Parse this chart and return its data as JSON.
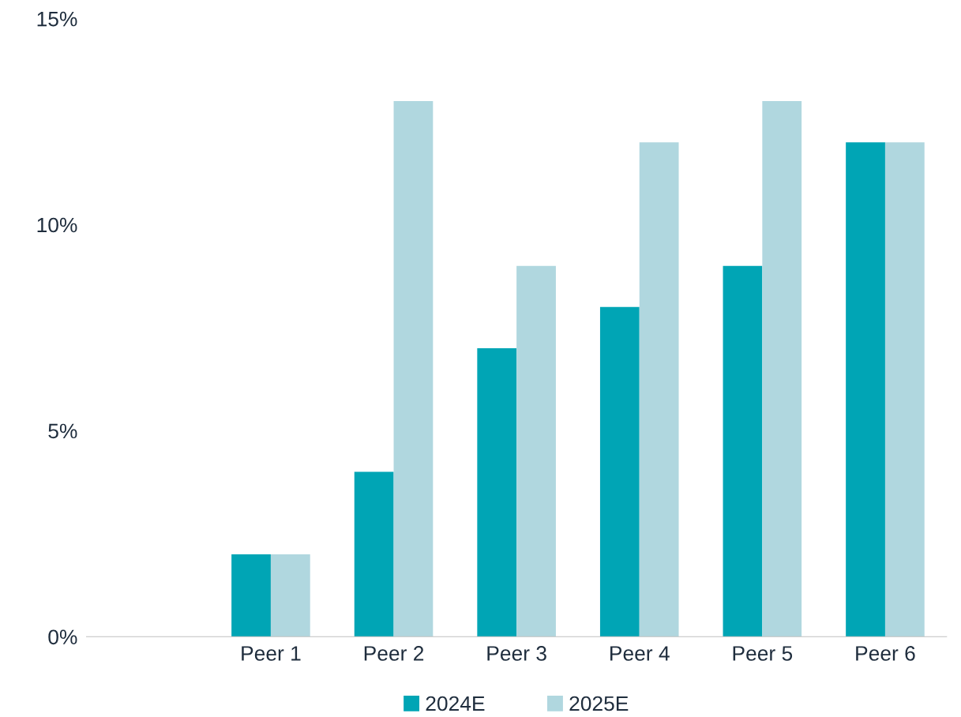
{
  "chart_data": {
    "type": "bar",
    "categories": [
      null,
      "Peer 1",
      "Peer 2",
      "Peer 3",
      "Peer 4",
      "Peer 5",
      "Peer 6"
    ],
    "series": [
      {
        "name": "2024E",
        "color": "#00a5b5",
        "values": [
          null,
          2,
          4,
          7,
          8,
          9,
          12
        ]
      },
      {
        "name": "2025E",
        "color": "#b0d7df",
        "values": [
          null,
          2,
          13,
          9,
          12,
          13,
          12
        ]
      }
    ],
    "ylim": [
      0,
      15
    ],
    "yticks": [
      {
        "value": 0,
        "label": "0%"
      },
      {
        "value": 5,
        "label": "5%"
      },
      {
        "value": 10,
        "label": "10%"
      },
      {
        "value": 15,
        "label": "15%"
      }
    ],
    "grid": false,
    "legend": "bottom"
  }
}
